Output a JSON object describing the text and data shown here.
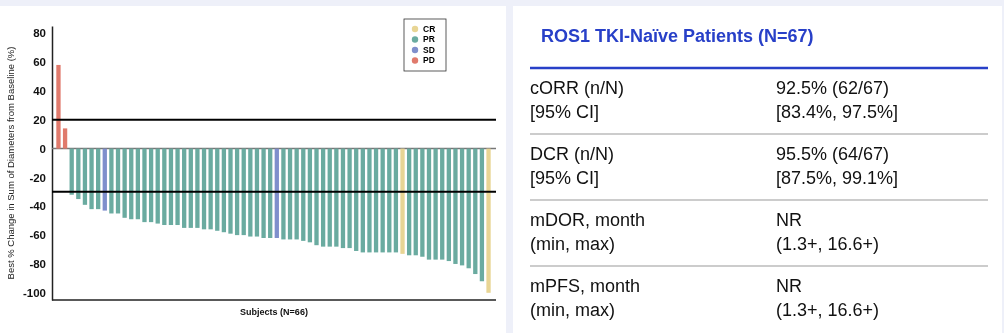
{
  "chart_data": [
    {
      "type": "bar",
      "ylabel": "Best % Change in Sum of Diameters from Baseline (%)",
      "xlabel": "Subjects (N=66)",
      "categories": [
        null,
        null,
        null,
        null,
        null,
        null,
        null,
        null,
        null,
        null,
        null,
        null,
        null,
        null,
        null,
        null,
        null,
        null,
        null,
        null,
        null,
        null,
        null,
        null,
        null,
        null,
        null,
        null,
        null,
        null,
        null,
        null,
        null,
        null,
        null,
        null,
        null,
        null,
        null,
        null,
        null,
        null,
        null,
        null,
        null,
        null,
        null,
        null,
        null,
        null,
        null,
        null,
        null,
        null,
        null,
        null,
        null,
        null,
        null,
        null,
        null,
        null,
        null,
        null,
        null,
        null
      ],
      "series": [
        {
          "name": "CR",
          "color": "#e8d594",
          "values": [
            null,
            null,
            null,
            null,
            null,
            null,
            null,
            null,
            null,
            null,
            null,
            null,
            null,
            null,
            null,
            null,
            null,
            null,
            null,
            null,
            null,
            null,
            null,
            null,
            null,
            null,
            null,
            null,
            null,
            null,
            null,
            null,
            null,
            null,
            null,
            null,
            null,
            null,
            null,
            null,
            null,
            null,
            null,
            null,
            null,
            null,
            null,
            null,
            null,
            null,
            null,
            null,
            -73,
            null,
            null,
            null,
            null,
            null,
            null,
            null,
            null,
            null,
            null,
            null,
            null,
            -100
          ]
        },
        {
          "name": "PR",
          "color": "#6aaba0",
          "values": [
            null,
            null,
            -32,
            -35,
            -39,
            -42,
            -42,
            null,
            -45,
            -45,
            -48,
            -49,
            -49,
            -51,
            -51,
            -52,
            -53,
            -53,
            -53,
            -55,
            -55,
            -55,
            -56,
            -56,
            -57,
            -58,
            -59,
            -60,
            -60,
            -61,
            -61,
            -62,
            -62,
            null,
            -63,
            -63,
            -63,
            -64,
            -65,
            -67,
            -68,
            -68,
            -68,
            -69,
            -69,
            -71,
            -72,
            -72,
            -72,
            -72,
            -72,
            -72,
            null,
            -74,
            -74,
            -75,
            -77,
            -77,
            -77,
            -78,
            -80,
            -81,
            -83,
            -87,
            -92,
            null
          ]
        },
        {
          "name": "SD",
          "color": "#7f8fcc",
          "values": [
            null,
            null,
            null,
            null,
            null,
            null,
            null,
            -43,
            null,
            null,
            null,
            null,
            null,
            null,
            null,
            null,
            null,
            null,
            null,
            null,
            null,
            null,
            null,
            null,
            null,
            null,
            null,
            null,
            null,
            null,
            null,
            null,
            null,
            -62,
            null,
            null,
            null,
            null,
            null,
            null,
            null,
            null,
            null,
            null,
            null,
            null,
            null,
            null,
            null,
            null,
            null,
            null,
            null,
            null,
            null,
            null,
            null,
            null,
            null,
            null,
            null,
            null,
            null,
            null,
            null,
            null
          ]
        },
        {
          "name": "PD",
          "color": "#e07a6c",
          "values": [
            58,
            14,
            null,
            null,
            null,
            null,
            null,
            null,
            null,
            null,
            null,
            null,
            null,
            null,
            null,
            null,
            null,
            null,
            null,
            null,
            null,
            null,
            null,
            null,
            null,
            null,
            null,
            null,
            null,
            null,
            null,
            null,
            null,
            null,
            null,
            null,
            null,
            null,
            null,
            null,
            null,
            null,
            null,
            null,
            null,
            null,
            null,
            null,
            null,
            null,
            null,
            null,
            null,
            null,
            null,
            null,
            null,
            null,
            null,
            null,
            null,
            null,
            null,
            null,
            null,
            null
          ]
        }
      ],
      "ylim": [
        -105,
        85
      ],
      "yticks": [
        -100,
        -80,
        -60,
        -40,
        -20,
        0,
        20,
        40,
        60,
        80
      ],
      "ref_lines": [
        {
          "axis": "y",
          "value": 20,
          "color": "#000000"
        },
        {
          "axis": "y",
          "value": -30,
          "color": "#000000"
        }
      ],
      "legend": "top right",
      "grid": false
    },
    {
      "type": "other",
      "title": "ROS1 TKI-Naïve Patients (N=67)",
      "annotations": [
        "cORR (n/N)\n[95% CI]",
        "92.5% (62/67)\n[83.4%, 97.5%]",
        "DCR (n/N)\n[95% CI]",
        "95.5% (64/67)\n[87.5%, 99.1%]",
        "mDOR, month\n(min, max)",
        "NR\n(1.3+, 16.6+)",
        "mPFS, month\n(min, max)",
        "NR\n(1.3+, 16.6+)"
      ]
    }
  ]
}
